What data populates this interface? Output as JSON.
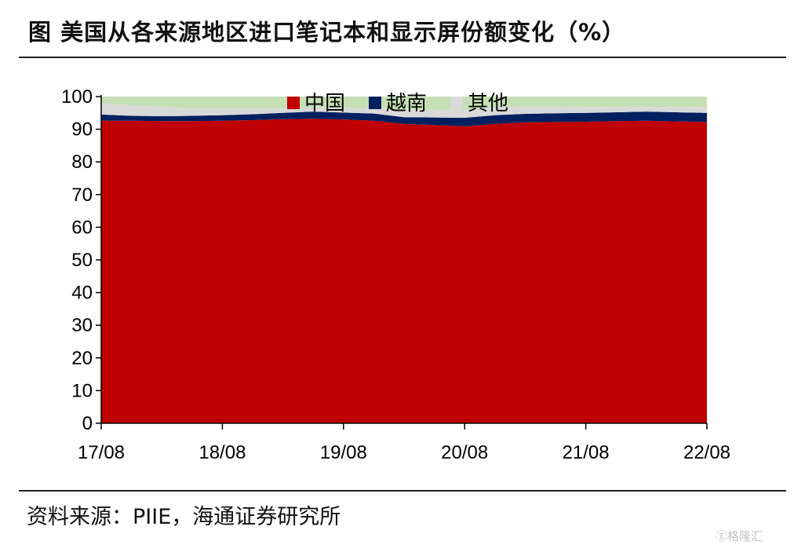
{
  "title": "图 美国从各来源地区进口笔记本和显示屏份额变化（%）",
  "source": "资料来源：PIIE，海通证券研究所",
  "watermark": "ⓖ格隆汇",
  "chart_data": {
    "type": "area",
    "stacked": true,
    "title": "",
    "xlabel": "",
    "ylabel": "",
    "ylim": [
      0,
      100
    ],
    "yticks": [
      0,
      10,
      20,
      30,
      40,
      50,
      60,
      70,
      80,
      90,
      100
    ],
    "xlim": [
      "2017-08",
      "2022-08"
    ],
    "xticks": [
      "17/08",
      "18/08",
      "19/08",
      "20/08",
      "21/08",
      "22/08"
    ],
    "legend": "top-center",
    "grid": false,
    "x": [
      "2017-08",
      "2017-11",
      "2018-02",
      "2018-05",
      "2018-08",
      "2018-11",
      "2019-02",
      "2019-05",
      "2019-08",
      "2019-11",
      "2020-02",
      "2020-05",
      "2020-08",
      "2020-11",
      "2021-02",
      "2021-05",
      "2021-08",
      "2021-11",
      "2022-02",
      "2022-05",
      "2022-08"
    ],
    "series": [
      {
        "name": "中国",
        "color": "#C00000",
        "values": [
          92.6,
          92.6,
          92.5,
          92.5,
          92.6,
          92.8,
          93.1,
          93.2,
          93.0,
          92.6,
          91.6,
          91.3,
          90.9,
          91.6,
          92.1,
          92.2,
          92.3,
          92.5,
          92.6,
          92.4,
          92.2
        ]
      },
      {
        "name": "越南",
        "color": "#002060",
        "values": [
          1.9,
          1.5,
          1.5,
          1.6,
          1.7,
          1.8,
          1.9,
          2.2,
          2.1,
          2.2,
          2.1,
          2.3,
          2.6,
          2.7,
          2.6,
          2.7,
          2.7,
          2.7,
          2.8,
          2.8,
          2.8
        ]
      },
      {
        "name": "其他",
        "color": "#D9D9D9",
        "values": [
          3.5,
          3.2,
          2.8,
          2.4,
          2.1,
          1.8,
          1.5,
          1.3,
          1.5,
          1.6,
          2.3,
          2.3,
          2.5,
          2.5,
          2.2,
          2.0,
          1.8,
          1.6,
          1.4,
          1.6,
          1.8
        ]
      },
      {
        "name": "",
        "color": "#C5E0B4",
        "values": [
          2.0,
          2.7,
          3.2,
          3.5,
          3.6,
          3.6,
          3.5,
          3.3,
          3.4,
          3.6,
          4.0,
          4.1,
          4.0,
          3.2,
          3.1,
          3.1,
          3.2,
          3.2,
          3.2,
          3.2,
          3.2
        ]
      }
    ]
  }
}
